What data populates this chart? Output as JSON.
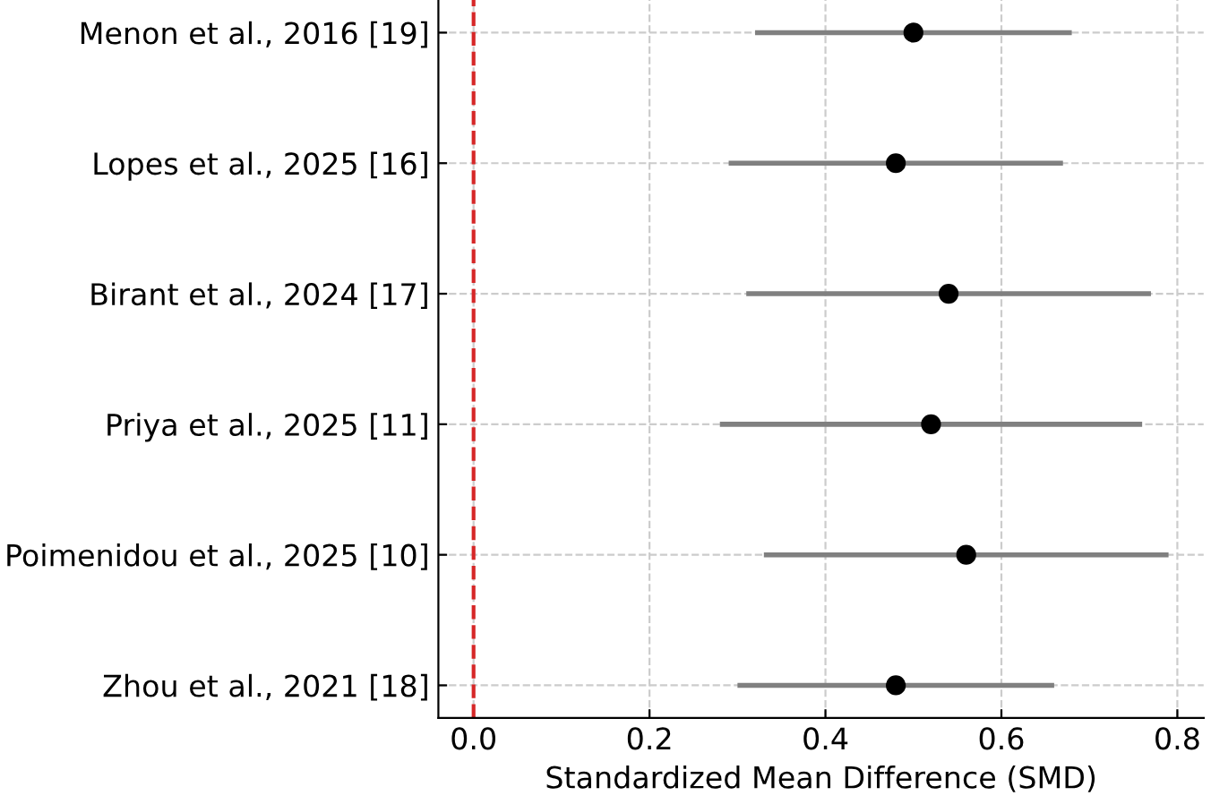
{
  "chart_data": {
    "type": "scatter",
    "orientation": "horizontal",
    "xlabel": "Standardized Mean Difference (SMD)",
    "categories": [
      "Menon et al., 2016 [19]",
      "Lopes et al., 2025 [16]",
      "Birant et al., 2024 [17]",
      "Priya et al., 2025 [11]",
      "Poimenidou et al., 2025 [10]",
      "Zhou et al., 2021 [18]"
    ],
    "series": [
      {
        "color": "#000000",
        "values": [
          0.5,
          0.48,
          0.54,
          0.52,
          0.56,
          0.48
        ],
        "errors": [
          [
            0.32,
            0.68
          ],
          [
            0.29,
            0.67
          ],
          [
            0.31,
            0.77
          ],
          [
            0.28,
            0.76
          ],
          [
            0.33,
            0.79
          ],
          [
            0.3,
            0.66
          ]
        ]
      }
    ],
    "xlim": [
      -0.04,
      0.83
    ],
    "xticks": [
      {
        "value": 0,
        "label": "0.0"
      },
      {
        "value": 0.2,
        "label": "0.2"
      },
      {
        "value": 0.4,
        "label": "0.4"
      },
      {
        "value": 0.6,
        "label": "0.6"
      },
      {
        "value": 0.8,
        "label": "0.8"
      }
    ],
    "ref_lines": [
      {
        "axis": "x",
        "value": 0,
        "color": "#d62728",
        "line_style": "dashed"
      }
    ],
    "grid": true,
    "marker": "circle",
    "legend": false
  }
}
